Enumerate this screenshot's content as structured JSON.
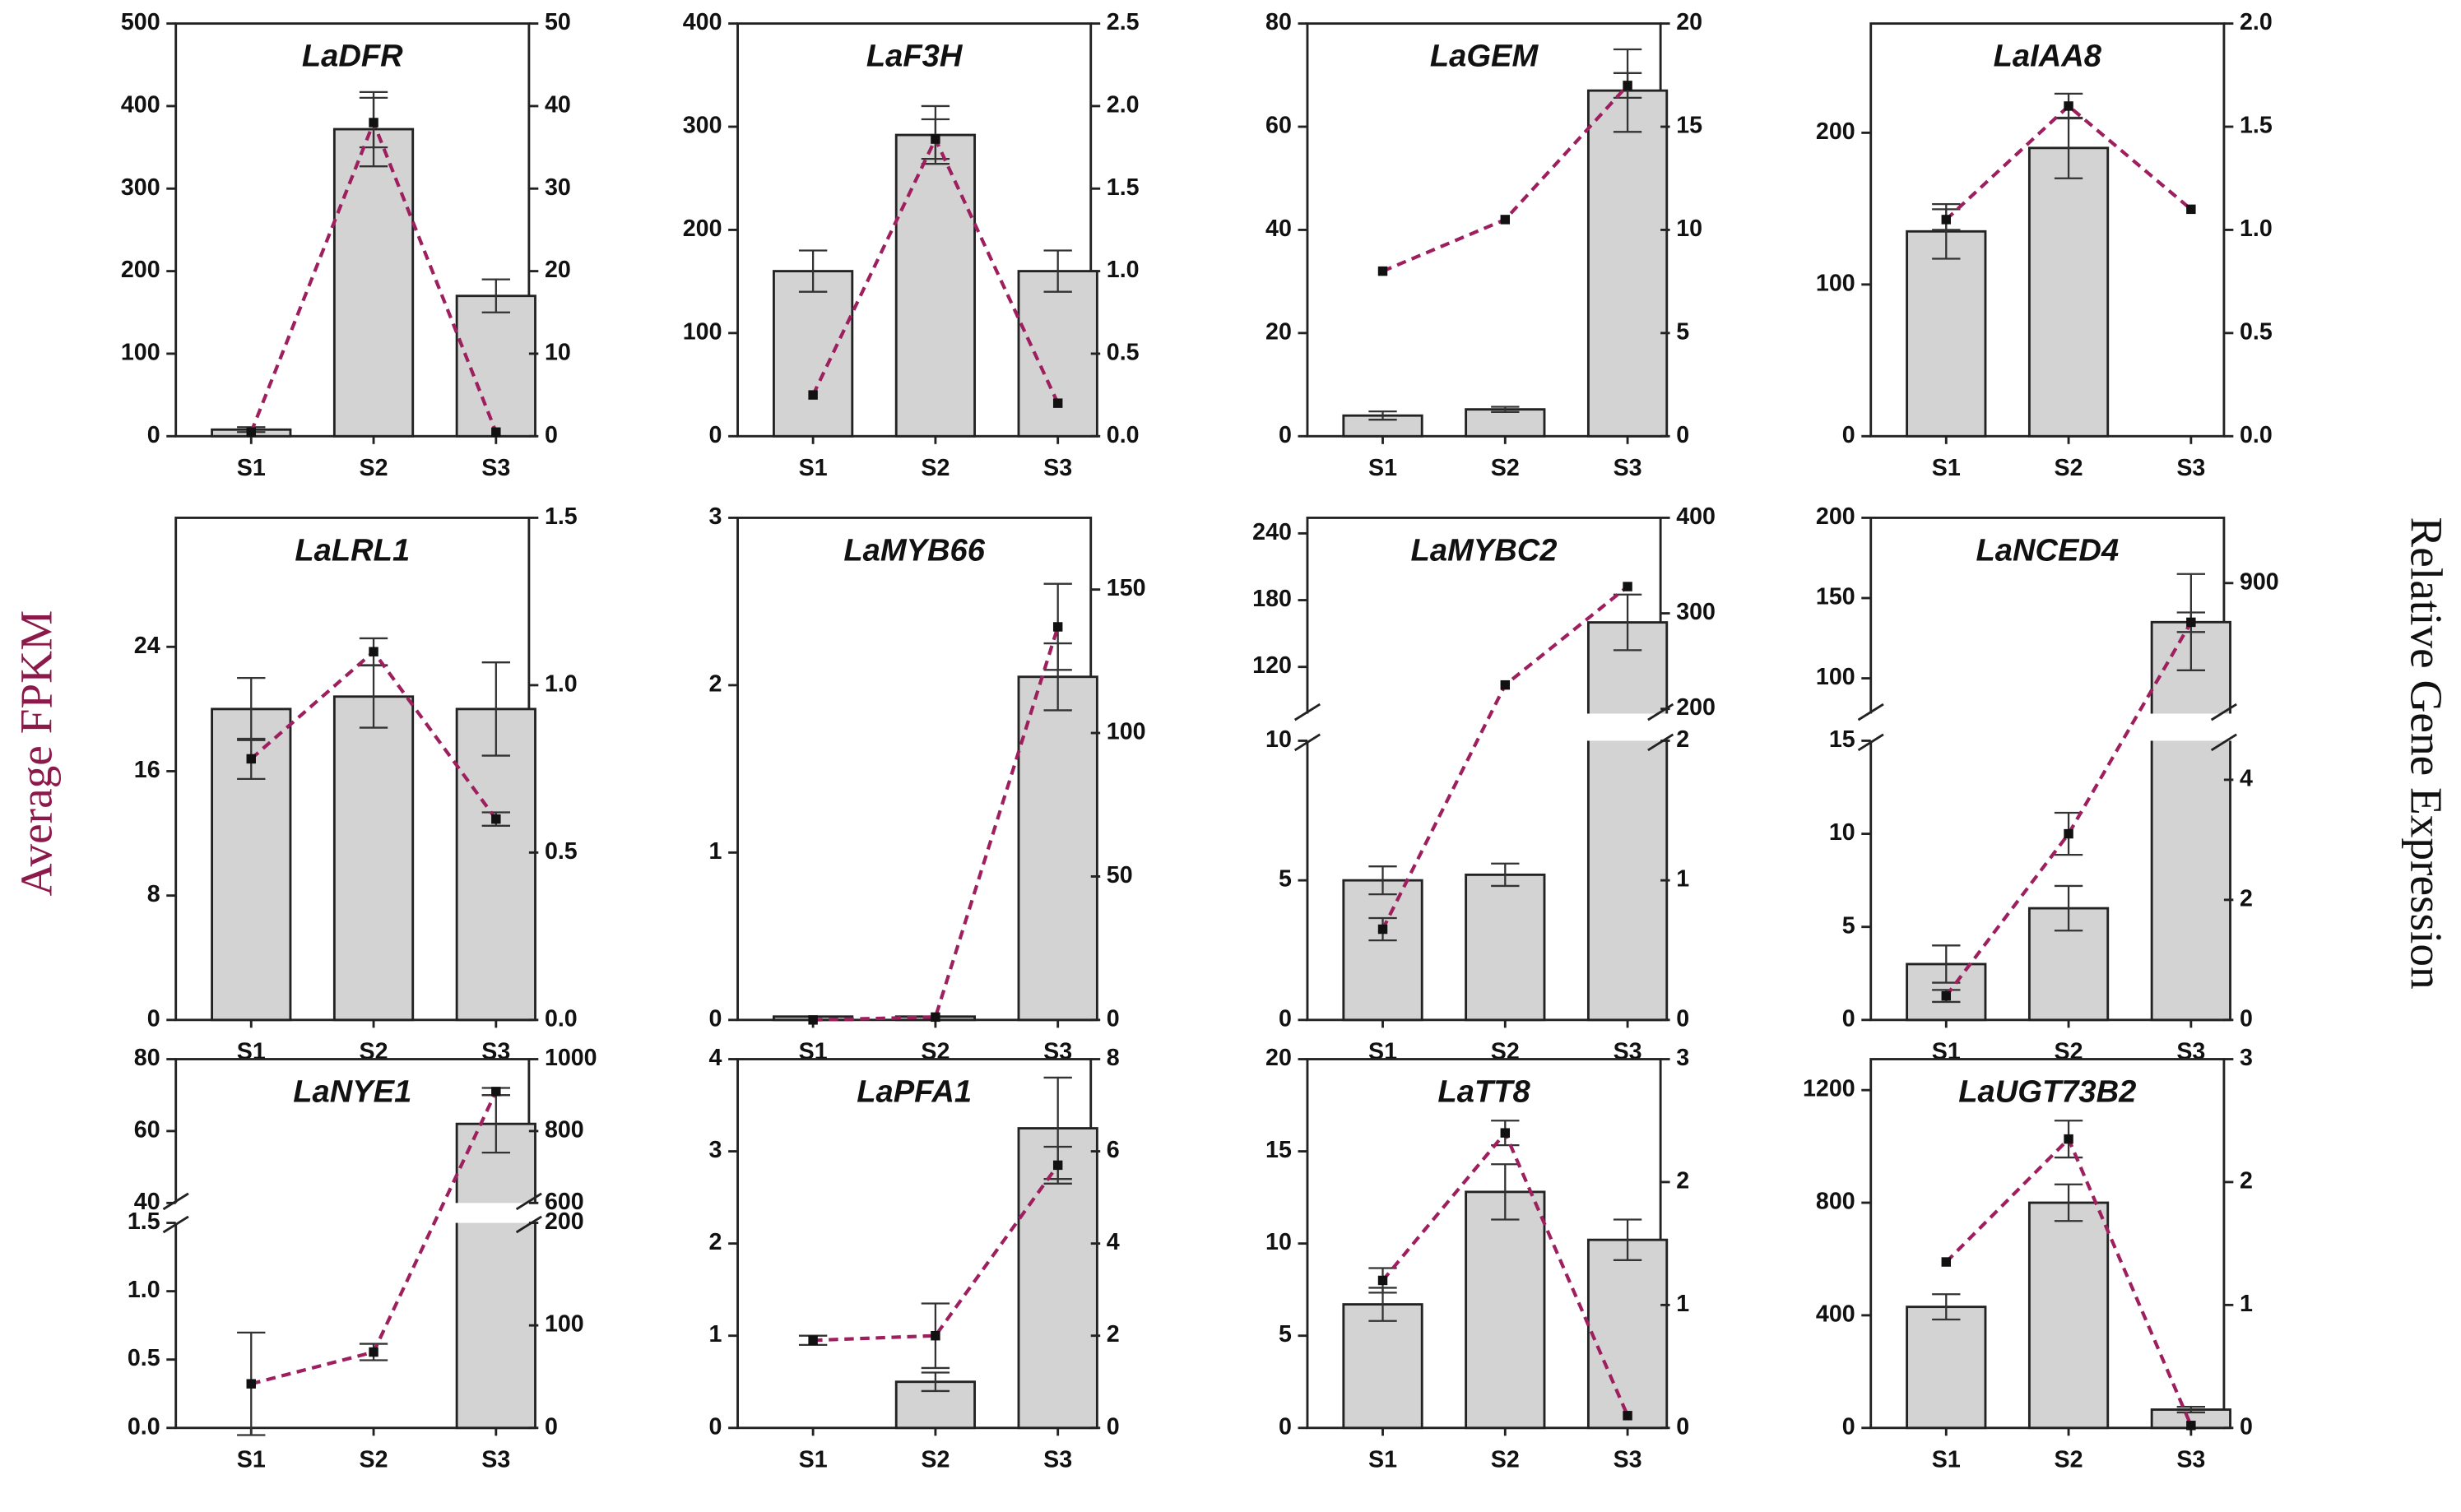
{
  "ylabel": "Average FPKM",
  "y2label": "Relative Gene Expression",
  "chart_data": [
    {
      "type": "bar",
      "title": "LaDFR",
      "categories": [
        "S1",
        "S2",
        "S3"
      ],
      "ysegments": [
        {
          "ylim": [
            0,
            500
          ],
          "yticks": [
            0,
            100,
            200,
            300,
            400,
            500
          ]
        }
      ],
      "y2segments": [
        {
          "ylim": [
            0,
            50
          ],
          "yticks": [
            0,
            10,
            20,
            30,
            40,
            50
          ]
        }
      ],
      "series": [
        {
          "color": "#d3d3d3",
          "values": [
            8,
            372,
            170
          ],
          "errors": [
            3,
            45,
            20
          ]
        },
        {
          "color": "#9e1f5e",
          "axis": "y2",
          "values": [
            0.5,
            38,
            0.5
          ],
          "errors": [
            null,
            3,
            null
          ]
        }
      ]
    },
    {
      "type": "bar",
      "title": "LaF3H",
      "categories": [
        "S1",
        "S2",
        "S3"
      ],
      "ysegments": [
        {
          "ylim": [
            0,
            400
          ],
          "yticks": [
            0,
            100,
            200,
            300,
            400
          ]
        }
      ],
      "y2segments": [
        {
          "ylim": [
            0,
            2.5
          ],
          "yticks": [
            {
              "value": 0,
              "label": "0.0"
            },
            0.5,
            {
              "value": 1,
              "label": "1.0"
            },
            1.5,
            {
              "value": 2,
              "label": "2.0"
            },
            2.5
          ]
        }
      ],
      "series": [
        {
          "color": "#d3d3d3",
          "values": [
            160,
            292,
            160
          ],
          "errors": [
            20,
            28,
            20
          ]
        },
        {
          "color": "#9e1f5e",
          "axis": "y2",
          "values": [
            0.25,
            1.8,
            0.2
          ],
          "errors": [
            null,
            0.12,
            null
          ]
        }
      ]
    },
    {
      "type": "bar",
      "title": "LaGEM",
      "categories": [
        "S1",
        "S2",
        "S3"
      ],
      "ysegments": [
        {
          "ylim": [
            0,
            80
          ],
          "yticks": [
            0,
            20,
            40,
            60,
            80
          ]
        }
      ],
      "y2segments": [
        {
          "ylim": [
            0,
            20
          ],
          "yticks": [
            0,
            5,
            10,
            15,
            20
          ]
        }
      ],
      "series": [
        {
          "color": "#d3d3d3",
          "values": [
            4,
            5.2,
            67
          ],
          "errors": [
            0.8,
            0.5,
            8
          ]
        },
        {
          "color": "#9e1f5e",
          "axis": "y2",
          "values": [
            8,
            10.5,
            17
          ],
          "errors": [
            null,
            null,
            0.6
          ]
        }
      ]
    },
    {
      "type": "bar",
      "title": "LaIAA8",
      "categories": [
        "S1",
        "S2",
        "S3"
      ],
      "ysegments": [
        {
          "ylim": [
            0,
            272
          ],
          "yticks": [
            0,
            100,
            200
          ]
        }
      ],
      "y2segments": [
        {
          "ylim": [
            0,
            2
          ],
          "yticks": [
            {
              "value": 0,
              "label": "0.0"
            },
            0.5,
            {
              "value": 1,
              "label": "1.0"
            },
            1.5,
            {
              "value": 2,
              "label": "2.0"
            }
          ]
        }
      ],
      "series": [
        {
          "color": "#d3d3d3",
          "values": [
            135,
            190,
            null
          ],
          "errors": [
            18,
            20,
            null
          ]
        },
        {
          "color": "#9e1f5e",
          "axis": "y2",
          "values": [
            1.05,
            1.6,
            1.1
          ],
          "errors": [
            0.05,
            0.06,
            null
          ]
        }
      ]
    },
    {
      "type": "bar",
      "title": "LaLRL1",
      "categories": [
        "S1",
        "S2",
        "S3"
      ],
      "ysegments": [
        {
          "ylim": [
            0,
            32.3
          ],
          "yticks": [
            0,
            8,
            16,
            24
          ]
        }
      ],
      "y2segments": [
        {
          "ylim": [
            0,
            1.5
          ],
          "yticks": [
            {
              "value": 0,
              "label": "0.0"
            },
            0.5,
            {
              "value": 1,
              "label": "1.0"
            },
            1.5
          ]
        }
      ],
      "series": [
        {
          "color": "#d3d3d3",
          "values": [
            20,
            20.8,
            20
          ],
          "errors": [
            2,
            2,
            3
          ]
        },
        {
          "color": "#9e1f5e",
          "axis": "y2",
          "values": [
            0.78,
            1.1,
            0.6
          ],
          "errors": [
            0.06,
            0.04,
            0.02
          ]
        }
      ]
    },
    {
      "type": "bar",
      "title": "LaMYB66",
      "categories": [
        "S1",
        "S2",
        "S3"
      ],
      "ysegments": [
        {
          "ylim": [
            0,
            3
          ],
          "yticks": [
            0,
            1,
            2,
            3
          ]
        }
      ],
      "y2segments": [
        {
          "ylim": [
            0,
            175
          ],
          "yticks": [
            0,
            50,
            100,
            150
          ]
        }
      ],
      "series": [
        {
          "color": "#d3d3d3",
          "values": [
            0.02,
            0.02,
            2.05
          ],
          "errors": [
            null,
            null,
            0.2
          ]
        },
        {
          "color": "#9e1f5e",
          "axis": "y2",
          "values": [
            0,
            1,
            137
          ],
          "errors": [
            null,
            null,
            15
          ]
        }
      ]
    },
    {
      "type": "bar",
      "title": "LaMYBC2",
      "categories": [
        "S1",
        "S2",
        "S3"
      ],
      "ysegments": [
        {
          "ylim": [
            0,
            10
          ],
          "yticks": [
            0,
            5,
            10
          ]
        },
        {
          "ylim": [
            78,
            254
          ],
          "yticks": [
            120,
            180,
            240
          ]
        }
      ],
      "y2segments": [
        {
          "ylim": [
            0,
            2
          ],
          "yticks": [
            0,
            1,
            2
          ]
        },
        {
          "ylim": [
            195,
            400
          ],
          "yticks": [
            200,
            300,
            400
          ]
        }
      ],
      "series": [
        {
          "color": "#d3d3d3",
          "values": [
            5,
            5.2,
            160
          ],
          "errors": [
            0.5,
            0.4,
            25
          ]
        },
        {
          "color": "#9e1f5e",
          "axis": "y2",
          "values": [
            0.65,
            225,
            328
          ],
          "errors": [
            0.08,
            null,
            null
          ]
        }
      ]
    },
    {
      "type": "bar",
      "title": "LaNCED4",
      "categories": [
        "S1",
        "S2",
        "S3"
      ],
      "ysegments": [
        {
          "ylim": [
            0,
            15
          ],
          "yticks": [
            0,
            5,
            10,
            15
          ]
        },
        {
          "ylim": [
            78,
            200
          ],
          "yticks": [
            100,
            150,
            200
          ]
        }
      ],
      "y2segments": [
        {
          "ylim": [
            0,
            4.65
          ],
          "yticks": [
            0,
            2,
            4
          ]
        },
        {
          "ylim": [
            700,
            1000
          ],
          "yticks": [
            900
          ]
        }
      ],
      "series": [
        {
          "color": "#d3d3d3",
          "values": [
            3,
            6,
            135
          ],
          "errors": [
            1,
            1.2,
            30
          ]
        },
        {
          "color": "#9e1f5e",
          "axis": "y2",
          "values": [
            0.4,
            3.1,
            840
          ],
          "errors": [
            0.1,
            0.35,
            15
          ]
        }
      ]
    },
    {
      "type": "bar",
      "title": "LaNYE1",
      "categories": [
        "S1",
        "S2",
        "S3"
      ],
      "ysegments": [
        {
          "ylim": [
            0,
            1.5
          ],
          "yticks": [
            {
              "value": 0,
              "label": "0.0"
            },
            0.5,
            {
              "value": 1,
              "label": "1.0"
            },
            1.5
          ]
        },
        {
          "ylim": [
            40,
            80
          ],
          "yticks": [
            40,
            60,
            80
          ]
        }
      ],
      "y2segments": [
        {
          "ylim": [
            0,
            200
          ],
          "yticks": [
            0,
            100,
            200
          ]
        },
        {
          "ylim": [
            600,
            1000
          ],
          "yticks": [
            600,
            800,
            1000
          ]
        }
      ],
      "series": [
        {
          "color": "#d3d3d3",
          "values": [
            null,
            null,
            62
          ],
          "errors": [
            null,
            null,
            8
          ]
        },
        {
          "color": "#9e1f5e",
          "axis": "y2",
          "values": [
            43,
            74,
            910
          ],
          "errors": [
            50,
            8,
            10
          ]
        }
      ]
    },
    {
      "type": "bar",
      "title": "LaPFA1",
      "categories": [
        "S1",
        "S2",
        "S3"
      ],
      "ysegments": [
        {
          "ylim": [
            0,
            4
          ],
          "yticks": [
            0,
            1,
            2,
            3,
            4
          ]
        }
      ],
      "y2segments": [
        {
          "ylim": [
            0,
            8
          ],
          "yticks": [
            0,
            2,
            4,
            6,
            8
          ]
        }
      ],
      "series": [
        {
          "color": "#d3d3d3",
          "values": [
            null,
            0.5,
            3.25
          ],
          "errors": [
            null,
            0.1,
            0.55
          ]
        },
        {
          "color": "#9e1f5e",
          "axis": "y2",
          "values": [
            1.9,
            2,
            5.7
          ],
          "errors": [
            0.1,
            0.7,
            0.4
          ]
        }
      ]
    },
    {
      "type": "bar",
      "title": "LaTT8",
      "categories": [
        "S1",
        "S2",
        "S3"
      ],
      "ysegments": [
        {
          "ylim": [
            0,
            20
          ],
          "yticks": [
            0,
            5,
            10,
            15,
            20
          ]
        }
      ],
      "y2segments": [
        {
          "ylim": [
            0,
            3
          ],
          "yticks": [
            0,
            1,
            2,
            3
          ]
        }
      ],
      "series": [
        {
          "color": "#d3d3d3",
          "values": [
            6.7,
            12.8,
            10.2
          ],
          "errors": [
            0.9,
            1.5,
            1.1
          ]
        },
        {
          "color": "#9e1f5e",
          "axis": "y2",
          "values": [
            1.2,
            2.4,
            0.1
          ],
          "errors": [
            0.1,
            0.1,
            null
          ]
        }
      ]
    },
    {
      "type": "bar",
      "title": "LaUGT73B2",
      "categories": [
        "S1",
        "S2",
        "S3"
      ],
      "ysegments": [
        {
          "ylim": [
            0,
            1310
          ],
          "yticks": [
            0,
            400,
            800,
            1200
          ]
        }
      ],
      "y2segments": [
        {
          "ylim": [
            0,
            3
          ],
          "yticks": [
            0,
            1,
            2,
            3
          ]
        }
      ],
      "series": [
        {
          "color": "#d3d3d3",
          "values": [
            430,
            800,
            65
          ],
          "errors": [
            45,
            65,
            10
          ]
        },
        {
          "color": "#9e1f5e",
          "axis": "y2",
          "values": [
            1.35,
            2.35,
            0.02
          ],
          "errors": [
            null,
            0.15,
            null
          ]
        }
      ]
    }
  ]
}
